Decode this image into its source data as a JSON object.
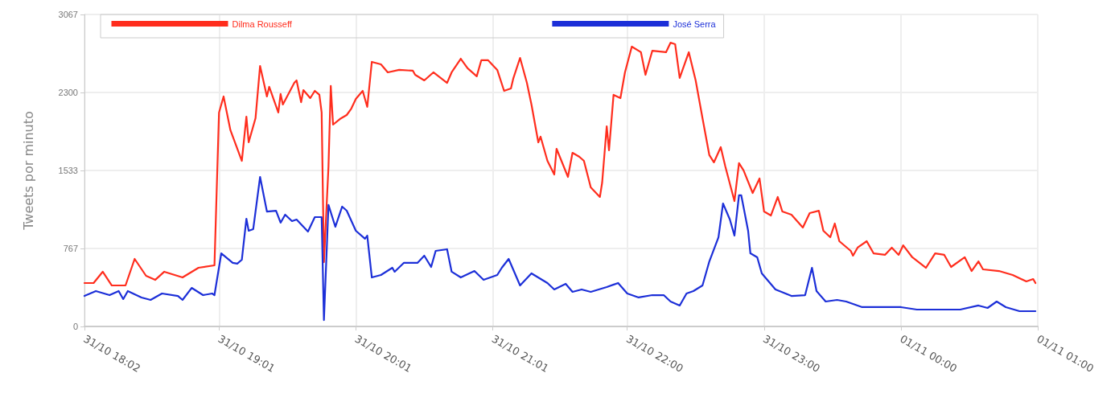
{
  "chart_data": {
    "type": "line",
    "ylabel": "Tweets por minuto",
    "xlim": [
      "--10-31T18:02",
      "--11-01T01:00"
    ],
    "xticks": [
      {
        "value": "--10-31T18:02",
        "label": "31/10 18:02"
      },
      {
        "value": "--10-31T19:01",
        "label": "31/10 19:01"
      },
      {
        "value": "--10-31T20:01",
        "label": "31/10 20:01"
      },
      {
        "value": "--10-31T21:01",
        "label": "31/10 21:01"
      },
      {
        "value": "--10-31T22:00",
        "label": "31/10 22:00"
      },
      {
        "value": "--10-31T23:00",
        "label": "31/10 23:00"
      },
      {
        "value": "--11-01T00:00",
        "label": "01/11 00:00"
      },
      {
        "value": "--11-01T01:00",
        "label": "01/11 01:00"
      }
    ],
    "ylim": [
      0,
      3067
    ],
    "yticks": [
      0,
      767,
      1533,
      2300,
      3067
    ],
    "grid": true,
    "legend": "top",
    "marker": "none",
    "line_style": "solid",
    "series": [
      {
        "name": "Dilma Rousseff",
        "color": "#ff2d1d",
        "x": [
          "--10-31T18:02",
          "--10-31T18:06",
          "--10-31T18:10",
          "--10-31T18:14",
          "--10-31T18:20",
          "--10-31T18:24",
          "--10-31T18:29",
          "--10-31T18:33",
          "--10-31T18:37",
          "--10-31T18:45",
          "--10-31T18:52",
          "--10-31T18:59",
          "--10-31T19:01",
          "--10-31T19:03",
          "--10-31T19:06",
          "--10-31T19:11",
          "--10-31T19:13",
          "--10-31T19:14",
          "--10-31T19:17",
          "--10-31T19:19",
          "--10-31T19:22",
          "--10-31T19:23",
          "--10-31T19:27",
          "--10-31T19:28",
          "--10-31T19:29",
          "--10-31T19:34",
          "--10-31T19:35",
          "--10-31T19:37",
          "--10-31T19:38",
          "--10-31T19:41",
          "--10-31T19:43",
          "--10-31T19:45",
          "--10-31T19:46",
          "--10-31T19:47",
          "--10-31T19:49",
          "--10-31T19:50",
          "--10-31T19:51",
          "--10-31T19:54",
          "--10-31T19:57",
          "--10-31T19:59",
          "--10-31T20:01",
          "--10-31T20:04",
          "--10-31T20:06",
          "--10-31T20:08",
          "--10-31T20:12",
          "--10-31T20:15",
          "--10-31T20:20",
          "--10-31T20:26",
          "--10-31T20:27",
          "--10-31T20:31",
          "--10-31T20:35",
          "--10-31T20:41",
          "--10-31T20:43",
          "--10-31T20:47",
          "--10-31T20:50",
          "--10-31T20:54",
          "--10-31T20:56",
          "--10-31T20:59",
          "--10-31T21:03",
          "--10-31T21:06",
          "--10-31T21:09",
          "--10-31T21:10",
          "--10-31T21:13",
          "--10-31T21:16",
          "--10-31T21:18",
          "--10-31T21:21",
          "--10-31T21:22",
          "--10-31T21:25",
          "--10-31T21:28",
          "--10-31T21:29",
          "--10-31T21:34",
          "--10-31T21:36",
          "--10-31T21:39",
          "--10-31T21:41",
          "--10-31T21:44",
          "--10-31T21:48",
          "--10-31T21:49",
          "--10-31T21:51",
          "--10-31T21:52",
          "--10-31T21:54",
          "--10-31T21:57",
          "--10-31T21:59",
          "--10-31T22:02",
          "--10-31T22:06",
          "--10-31T22:08",
          "--10-31T22:11",
          "--10-31T22:17",
          "--10-31T22:19",
          "--10-31T22:21",
          "--10-31T22:23",
          "--10-31T22:27",
          "--10-31T22:30",
          "--10-31T22:33",
          "--10-31T22:36",
          "--10-31T22:38",
          "--10-31T22:41",
          "--10-31T22:43",
          "--10-31T22:47",
          "--10-31T22:49",
          "--10-31T22:51",
          "--10-31T22:55",
          "--10-31T22:58",
          "--10-31T23:00",
          "--10-31T23:03",
          "--10-31T23:06",
          "--10-31T23:08",
          "--10-31T23:12",
          "--10-31T23:17",
          "--10-31T23:20",
          "--10-31T23:24",
          "--10-31T23:26",
          "--10-31T23:29",
          "--10-31T23:31",
          "--10-31T23:33",
          "--10-31T23:38",
          "--10-31T23:39",
          "--10-31T23:41",
          "--10-31T23:45",
          "--10-31T23:48",
          "--10-31T23:53",
          "--10-31T23:56",
          "--10-31T23:59",
          "--11-01T00:01",
          "--11-01T00:05",
          "--11-01T00:11",
          "--11-01T00:15",
          "--11-01T00:19",
          "--11-01T00:22",
          "--11-01T00:28",
          "--11-01T00:31",
          "--11-01T00:34",
          "--11-01T00:36",
          "--11-01T00:43",
          "--11-01T00:49",
          "--11-01T00:55",
          "--11-01T00:58",
          "--11-01T00:59"
        ],
        "values": [
          427,
          427,
          538,
          403,
          403,
          664,
          498,
          458,
          538,
          482,
          577,
          601,
          2103,
          2261,
          1929,
          1628,
          2063,
          1810,
          2047,
          2561,
          2261,
          2356,
          2103,
          2285,
          2182,
          2395,
          2419,
          2205,
          2324,
          2245,
          2316,
          2277,
          2103,
          632,
          1573,
          2364,
          1984,
          2039,
          2079,
          2142,
          2237,
          2316,
          2158,
          2601,
          2577,
          2498,
          2522,
          2514,
          2474,
          2419,
          2498,
          2395,
          2498,
          2632,
          2538,
          2459,
          2617,
          2617,
          2522,
          2316,
          2340,
          2435,
          2640,
          2395,
          2182,
          1810,
          1866,
          1628,
          1494,
          1747,
          1470,
          1707,
          1668,
          1628,
          1368,
          1273,
          1415,
          1968,
          1731,
          2277,
          2245,
          2498,
          2751,
          2696,
          2474,
          2711,
          2696,
          2790,
          2775,
          2443,
          2696,
          2419,
          2047,
          1684,
          1613,
          1763,
          1573,
          1233,
          1605,
          1534,
          1312,
          1455,
          1130,
          1091,
          1273,
          1130,
          1099,
          972,
          1115,
          1138,
          941,
          877,
          1012,
          838,
          743,
          696,
          775,
          838,
          719,
          704,
          775,
          704,
          798,
          680,
          577,
          719,
          704,
          585,
          680,
          545,
          640,
          561,
          545,
          506,
          443,
          466,
          427
        ]
      },
      {
        "name": "José Serra",
        "color": "#1c2fd8",
        "x": [
          "--10-31T18:02",
          "--10-31T18:07",
          "--10-31T18:13",
          "--10-31T18:17",
          "--10-31T18:19",
          "--10-31T18:21",
          "--10-31T18:27",
          "--10-31T18:31",
          "--10-31T18:36",
          "--10-31T18:43",
          "--10-31T18:45",
          "--10-31T18:49",
          "--10-31T18:54",
          "--10-31T18:58",
          "--10-31T18:59",
          "--10-31T19:02",
          "--10-31T19:07",
          "--10-31T19:09",
          "--10-31T19:11",
          "--10-31T19:13",
          "--10-31T19:14",
          "--10-31T19:16",
          "--10-31T19:19",
          "--10-31T19:22",
          "--10-31T19:26",
          "--10-31T19:28",
          "--10-31T19:30",
          "--10-31T19:33",
          "--10-31T19:35",
          "--10-31T19:40",
          "--10-31T19:43",
          "--10-31T19:46",
          "--10-31T19:47",
          "--10-31T19:49",
          "--10-31T19:52",
          "--10-31T19:55",
          "--10-31T19:57",
          "--10-31T20:01",
          "--10-31T20:05",
          "--10-31T20:06",
          "--10-31T20:08",
          "--10-31T20:12",
          "--10-31T20:17",
          "--10-31T20:18",
          "--10-31T20:22",
          "--10-31T20:28",
          "--10-31T20:31",
          "--10-31T20:34",
          "--10-31T20:36",
          "--10-31T20:41",
          "--10-31T20:43",
          "--10-31T20:47",
          "--10-31T20:53",
          "--10-31T20:57",
          "--10-31T21:03",
          "--10-31T21:05",
          "--10-31T21:08",
          "--10-31T21:13",
          "--10-31T21:18",
          "--10-31T21:25",
          "--10-31T21:28",
          "--10-31T21:33",
          "--10-31T21:36",
          "--10-31T21:40",
          "--10-31T21:44",
          "--10-31T21:51",
          "--10-31T21:56",
          "--10-31T22:00",
          "--10-31T22:05",
          "--10-31T22:11",
          "--10-31T22:16",
          "--10-31T22:19",
          "--10-31T22:23",
          "--10-31T22:26",
          "--10-31T22:29",
          "--10-31T22:33",
          "--10-31T22:36",
          "--10-31T22:40",
          "--10-31T22:42",
          "--10-31T22:45",
          "--10-31T22:47",
          "--10-31T22:49",
          "--10-31T22:50",
          "--10-31T22:53",
          "--10-31T22:54",
          "--10-31T22:57",
          "--10-31T22:59",
          "--10-31T23:05",
          "--10-31T23:12",
          "--10-31T23:18",
          "--10-31T23:21",
          "--10-31T23:23",
          "--10-31T23:27",
          "--10-31T23:32",
          "--10-31T23:36",
          "--10-31T23:43",
          "--10-31T23:53",
          "--11-01T00:00",
          "--11-01T00:07",
          "--11-01T00:17",
          "--11-01T00:26",
          "--11-01T00:34",
          "--11-01T00:38",
          "--11-01T00:42",
          "--11-01T00:46",
          "--11-01T00:52",
          "--11-01T00:59"
        ],
        "values": [
          300,
          348,
          308,
          348,
          269,
          348,
          285,
          261,
          324,
          300,
          261,
          379,
          308,
          324,
          308,
          719,
          625,
          617,
          656,
          1059,
          941,
          957,
          1470,
          1130,
          1138,
          1020,
          1099,
          1036,
          1051,
          933,
          1075,
          1075,
          63,
          1194,
          980,
          1178,
          1138,
          941,
          862,
          893,
          482,
          506,
          577,
          538,
          625,
          625,
          696,
          585,
          743,
          759,
          538,
          482,
          545,
          458,
          506,
          577,
          664,
          403,
          522,
          427,
          364,
          419,
          340,
          364,
          340,
          387,
          427,
          324,
          285,
          308,
          308,
          245,
          206,
          324,
          348,
          403,
          640,
          877,
          1209,
          1051,
          893,
          1289,
          1289,
          941,
          719,
          680,
          522,
          364,
          300,
          308,
          577,
          348,
          245,
          261,
          245,
          190,
          190,
          190,
          166,
          166,
          166,
          206,
          182,
          245,
          190,
          150,
          150
        ]
      }
    ]
  }
}
